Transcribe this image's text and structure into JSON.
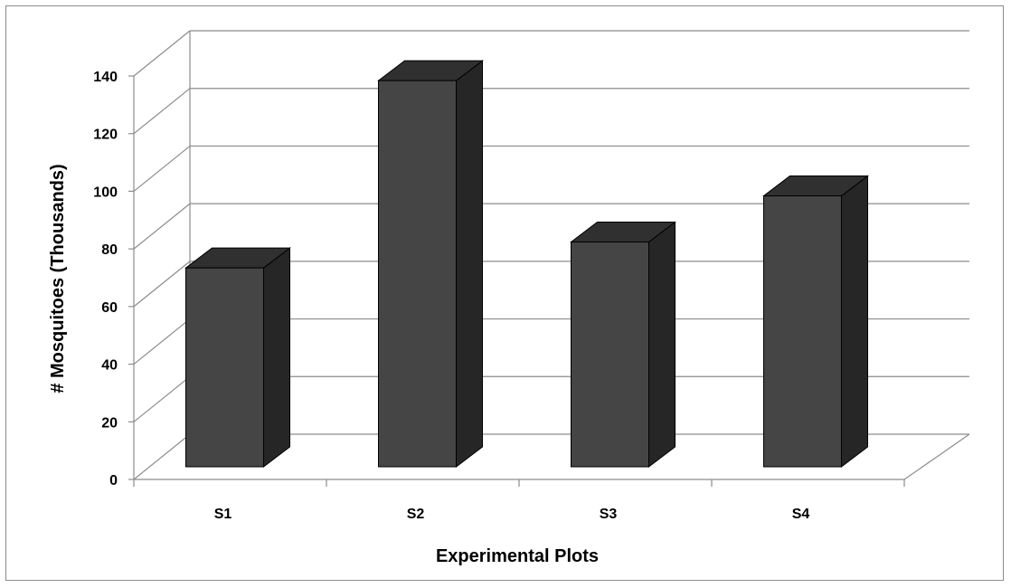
{
  "chart_data": {
    "type": "bar",
    "title": "",
    "xlabel": "Experimental Plots",
    "ylabel": "# Mosquitoes  (Thousands)",
    "categories": [
      "S1",
      "S2",
      "S3",
      "S4"
    ],
    "values": [
      69,
      134,
      78,
      94
    ],
    "ylim": [
      0,
      140
    ],
    "yticks": [
      0,
      20,
      40,
      60,
      80,
      100,
      120,
      140
    ],
    "grid": true,
    "legend": "none",
    "style": "3d-column",
    "colors": {
      "bar_front": "#454545",
      "bar_side": "#262626",
      "bar_top": "#303030",
      "gridline": "#8c8c8c",
      "frame": "#8c8c8c"
    }
  }
}
